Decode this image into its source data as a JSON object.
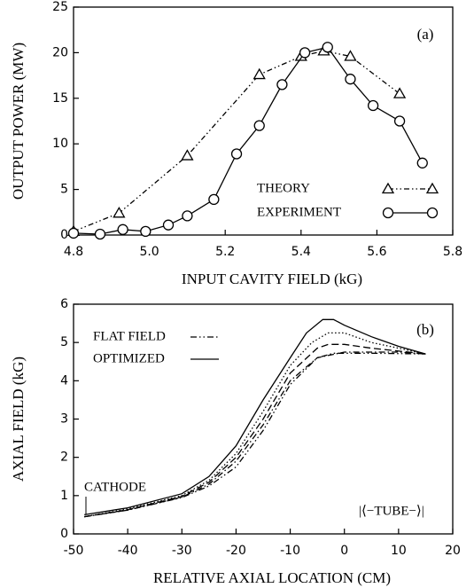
{
  "chart_data": [
    {
      "type": "line",
      "panel_label": "(a)",
      "xlabel": "INPUT CAVITY FIELD (kG)",
      "ylabel": "OUTPUT POWER (MW)",
      "xlim": [
        4.8,
        5.8
      ],
      "xticks": [
        {
          "value": 4.8,
          "label": "4.8"
        },
        {
          "value": 5.0,
          "label": "5.0"
        },
        5.2,
        5.4,
        5.6,
        5.8
      ],
      "ylim": [
        0,
        25
      ],
      "yticks": [
        0,
        5,
        10,
        15,
        20,
        25
      ],
      "grid": false,
      "series": [
        {
          "name": "THEORY",
          "color": "#000000",
          "dash": "6 3 1.5 3 1.5 3",
          "marker": "triangle",
          "x": [
            4.8,
            4.92,
            5.1,
            5.29,
            5.4,
            5.46,
            5.53,
            5.66
          ],
          "values": [
            0.4,
            2.4,
            8.7,
            17.6,
            19.6,
            20.2,
            19.6,
            15.5
          ]
        },
        {
          "name": "EXPERIMENT",
          "color": "#000000",
          "dash": "none",
          "marker": "circle",
          "x": [
            4.8,
            4.87,
            4.93,
            4.99,
            5.05,
            5.1,
            5.17,
            5.23,
            5.29,
            5.35,
            5.41,
            5.47,
            5.53,
            5.59,
            5.66,
            5.72
          ],
          "values": [
            0.2,
            0.1,
            0.6,
            0.4,
            1.1,
            2.1,
            3.9,
            8.9,
            12.0,
            16.5,
            20.0,
            20.6,
            17.1,
            14.2,
            12.5,
            7.9
          ]
        }
      ]
    },
    {
      "type": "line",
      "panel_label": "(b)",
      "xlabel": "RELATIVE AXIAL LOCATION (CM)",
      "ylabel": "AXIAL FIELD (kG)",
      "xlim": [
        -50,
        20
      ],
      "xticks": [
        -50,
        -40,
        -30,
        -20,
        -10,
        0,
        10,
        20
      ],
      "ylim": [
        0,
        6
      ],
      "yticks": [
        0,
        1,
        2,
        3,
        4,
        5,
        6
      ],
      "grid": false,
      "annotations": [
        "CATHODE",
        "|⟨−TUBE−⟩|"
      ],
      "series": [
        {
          "name": "FLAT FIELD",
          "color": "#000000",
          "dash": "7 3 1.5 3 1.5 3",
          "x": [
            -48,
            -40,
            -30,
            -25,
            -20,
            -15,
            -10,
            -5,
            -2,
            5,
            15
          ],
          "values": [
            0.45,
            0.62,
            0.95,
            1.25,
            1.75,
            2.7,
            3.9,
            4.6,
            4.72,
            4.72,
            4.7
          ]
        },
        {
          "name": "OPTIMIZED",
          "color": "#000000",
          "dash": "none",
          "x": [
            -48,
            -40,
            -30,
            -25,
            -20,
            -15,
            -10,
            -7,
            -4,
            -2,
            0,
            5,
            10,
            15
          ],
          "values": [
            0.5,
            0.68,
            1.05,
            1.5,
            2.3,
            3.5,
            4.6,
            5.25,
            5.6,
            5.6,
            5.45,
            5.15,
            4.9,
            4.7
          ]
        },
        {
          "color": "#000000",
          "dash": "1.5 2.5",
          "x": [
            -48,
            -40,
            -30,
            -25,
            -20,
            -15,
            -10,
            -6,
            -3,
            0,
            5,
            10,
            15
          ],
          "values": [
            0.45,
            0.65,
            1.0,
            1.4,
            2.1,
            3.2,
            4.4,
            5.0,
            5.25,
            5.25,
            5.0,
            4.85,
            4.7
          ]
        },
        {
          "color": "#000000",
          "dash": "8 4",
          "x": [
            -48,
            -40,
            -30,
            -25,
            -20,
            -15,
            -10,
            -5,
            -3,
            0,
            5,
            15
          ],
          "values": [
            0.45,
            0.63,
            0.98,
            1.35,
            2.0,
            3.0,
            4.2,
            4.85,
            4.95,
            4.95,
            4.85,
            4.7
          ]
        },
        {
          "color": "#000000",
          "dash": "7 3 1.5 3",
          "x": [
            -48,
            -40,
            -30,
            -25,
            -20,
            -15,
            -10,
            -5,
            0,
            10,
            15
          ],
          "values": [
            0.45,
            0.62,
            0.96,
            1.3,
            1.9,
            2.85,
            4.0,
            4.6,
            4.75,
            4.75,
            4.7
          ]
        }
      ]
    }
  ]
}
